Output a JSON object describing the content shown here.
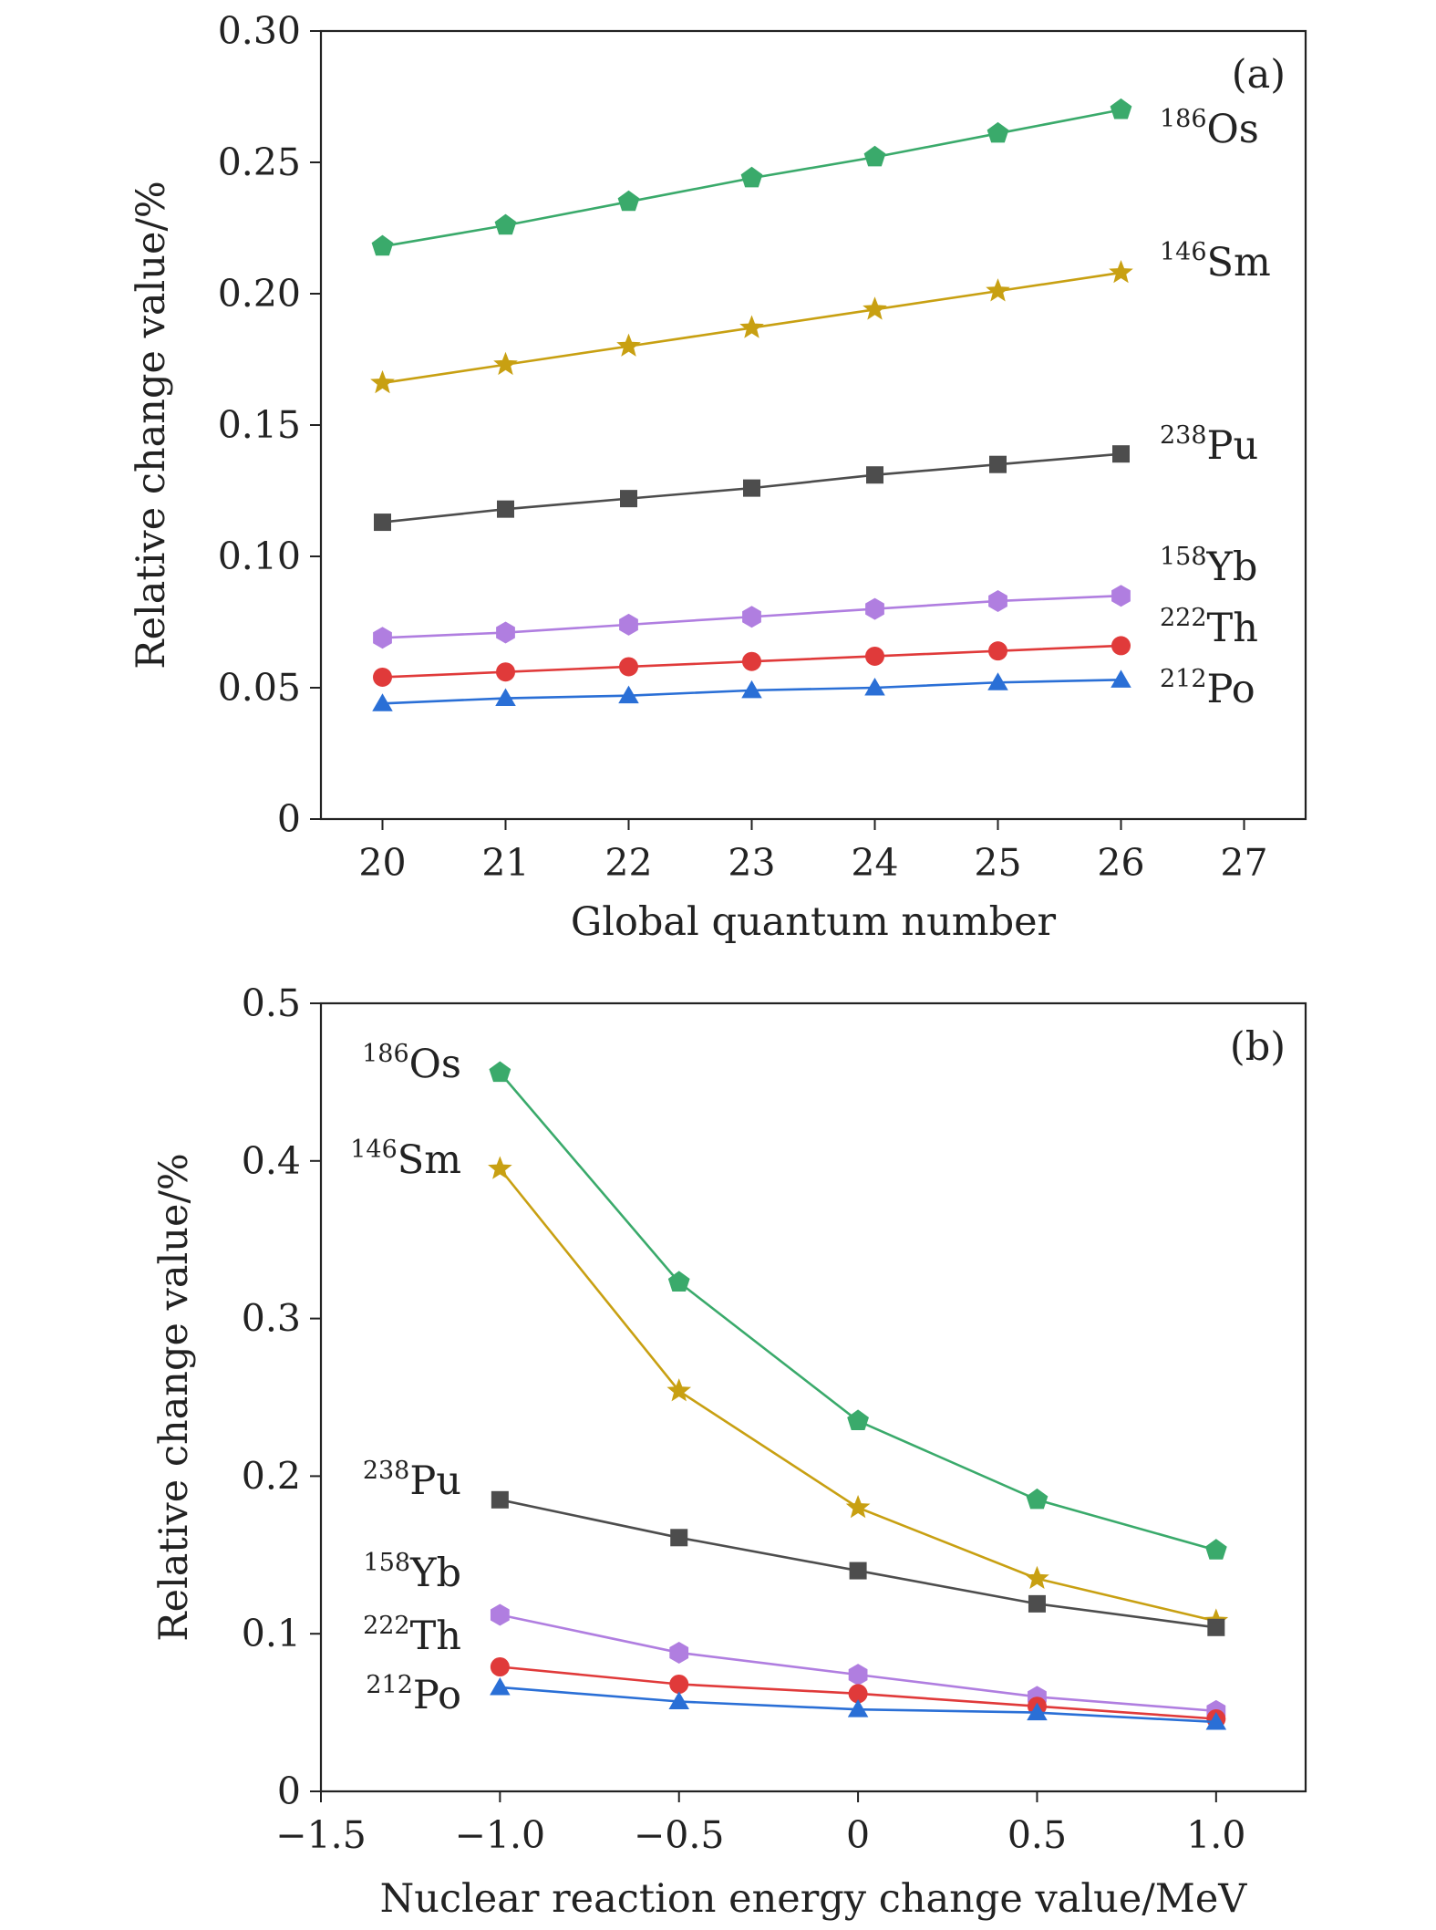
{
  "chart_data": [
    {
      "id": "a",
      "type": "line",
      "panel_label": "(a)",
      "xlabel": "Global quantum number",
      "ylabel": "Relative change value/%",
      "xlim": [
        19.5,
        27.5
      ],
      "ylim": [
        0,
        0.3
      ],
      "xticks": [
        20,
        21,
        22,
        23,
        24,
        25,
        26,
        27
      ],
      "xtick_labels": [
        "20",
        "21",
        "22",
        "23",
        "24",
        "25",
        "26",
        "27"
      ],
      "yticks": [
        0,
        0.05,
        0.1,
        0.15,
        0.2,
        0.25,
        0.3
      ],
      "ytick_labels": [
        "0",
        "0.05",
        "0.10",
        "0.15",
        "0.20",
        "0.25",
        "0.30"
      ],
      "x": [
        20,
        21,
        22,
        23,
        24,
        25,
        26
      ],
      "label_position": "right",
      "series": [
        {
          "mass": "186",
          "element": "Os",
          "color": "#3aaa6b",
          "marker": "pentagon",
          "values": [
            0.218,
            0.226,
            0.235,
            0.244,
            0.252,
            0.261,
            0.27
          ]
        },
        {
          "mass": "146",
          "element": "Sm",
          "color": "#c8a012",
          "marker": "star",
          "values": [
            0.166,
            0.173,
            0.18,
            0.187,
            0.194,
            0.201,
            0.208
          ]
        },
        {
          "mass": "238",
          "element": "Pu",
          "color": "#4d4d4d",
          "marker": "square",
          "values": [
            0.113,
            0.118,
            0.122,
            0.126,
            0.131,
            0.135,
            0.139
          ]
        },
        {
          "mass": "158",
          "element": "Yb",
          "color": "#b07ee0",
          "marker": "hexagon",
          "values": [
            0.069,
            0.071,
            0.074,
            0.077,
            0.08,
            0.083,
            0.085
          ]
        },
        {
          "mass": "222",
          "element": "Th",
          "color": "#e03a3a",
          "marker": "circle",
          "values": [
            0.054,
            0.056,
            0.058,
            0.06,
            0.062,
            0.064,
            0.066
          ]
        },
        {
          "mass": "212",
          "element": "Po",
          "color": "#2a6fd6",
          "marker": "triangle",
          "values": [
            0.044,
            0.046,
            0.047,
            0.049,
            0.05,
            0.052,
            0.053
          ]
        }
      ]
    },
    {
      "id": "b",
      "type": "line",
      "panel_label": "(b)",
      "xlabel": "Nuclear reaction energy change value/MeV",
      "ylabel": "Relative change value/%",
      "xlim": [
        -1.5,
        1.25
      ],
      "ylim": [
        0,
        0.5
      ],
      "xticks": [
        -1.5,
        -1.0,
        -0.5,
        0,
        0.5,
        1.0
      ],
      "xtick_labels": [
        "−1.5",
        "−1.0",
        "−0.5",
        "0",
        "0.5",
        "1.0"
      ],
      "yticks": [
        0,
        0.1,
        0.2,
        0.3,
        0.4,
        0.5
      ],
      "ytick_labels": [
        "0",
        "0.1",
        "0.2",
        "0.3",
        "0.4",
        "0.5"
      ],
      "x": [
        -1.0,
        -0.5,
        0,
        0.5,
        1.0
      ],
      "label_position": "left",
      "series": [
        {
          "mass": "186",
          "element": "Os",
          "color": "#3aaa6b",
          "marker": "pentagon",
          "values": [
            0.456,
            0.323,
            0.235,
            0.185,
            0.153
          ]
        },
        {
          "mass": "146",
          "element": "Sm",
          "color": "#c8a012",
          "marker": "star",
          "values": [
            0.395,
            0.254,
            0.18,
            0.135,
            0.108
          ]
        },
        {
          "mass": "238",
          "element": "Pu",
          "color": "#4d4d4d",
          "marker": "square",
          "values": [
            0.185,
            0.161,
            0.14,
            0.119,
            0.104
          ]
        },
        {
          "mass": "158",
          "element": "Yb",
          "color": "#b07ee0",
          "marker": "hexagon",
          "values": [
            0.112,
            0.088,
            0.074,
            0.06,
            0.051
          ]
        },
        {
          "mass": "222",
          "element": "Th",
          "color": "#e03a3a",
          "marker": "circle",
          "values": [
            0.079,
            0.068,
            0.062,
            0.054,
            0.046
          ]
        },
        {
          "mass": "212",
          "element": "Po",
          "color": "#2a6fd6",
          "marker": "triangle",
          "values": [
            0.066,
            0.057,
            0.052,
            0.05,
            0.044
          ]
        }
      ]
    }
  ]
}
